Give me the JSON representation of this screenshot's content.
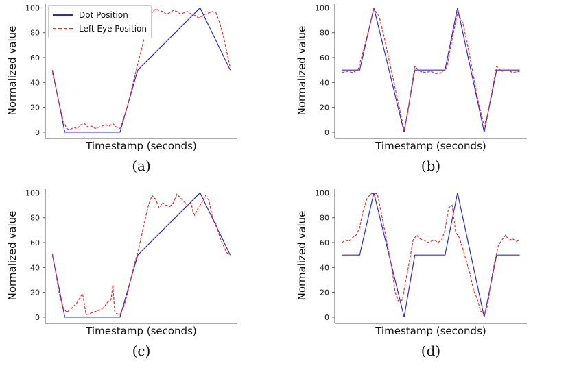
{
  "colors": {
    "dot": "#2b2bd6",
    "eye": "#e8312c",
    "axis": "#555555"
  },
  "legend": {
    "dot_label": "Dot Position",
    "eye_label": "Left Eye Position"
  },
  "chart_data": [
    {
      "type": "line",
      "caption": "(a)",
      "xlabel": "Timestamp (seconds)",
      "ylabel": "Normalized value",
      "ylim": [
        -5,
        103
      ],
      "yticks": [
        0,
        20,
        40,
        60,
        80,
        100
      ],
      "legend_placement": "top-left",
      "series": [
        {
          "name": "Dot Position",
          "style": "solid",
          "x": [
            0,
            7,
            38,
            48,
            83,
            100
          ],
          "values": [
            50,
            0,
            0,
            50,
            100,
            50
          ]
        },
        {
          "name": "Left Eye Position",
          "style": "dashed",
          "x": [
            0,
            2,
            4,
            6,
            8,
            10,
            12,
            14,
            16,
            18,
            20,
            22,
            24,
            26,
            28,
            30,
            32,
            34,
            36,
            38,
            40,
            42,
            44,
            46,
            48,
            50,
            52,
            54,
            56,
            58,
            60,
            62,
            64,
            66,
            68,
            70,
            72,
            74,
            76,
            78,
            80,
            82,
            84,
            86,
            88,
            90,
            92,
            94,
            96,
            98,
            100
          ],
          "values": [
            48,
            35,
            22,
            10,
            3,
            2,
            4,
            3,
            6,
            7,
            4,
            5,
            3,
            4,
            5,
            6,
            5,
            7,
            4,
            3,
            11,
            20,
            31,
            43,
            55,
            66,
            78,
            88,
            96,
            99,
            98,
            97,
            95,
            96,
            98,
            97,
            95,
            96,
            97,
            95,
            94,
            92,
            93,
            95,
            96,
            97,
            96,
            88,
            78,
            65,
            52
          ]
        }
      ]
    },
    {
      "type": "line",
      "caption": "(b)",
      "xlabel": "Timestamp (seconds)",
      "ylabel": "Normalized value",
      "ylim": [
        -5,
        103
      ],
      "yticks": [
        0,
        20,
        40,
        60,
        80,
        100
      ],
      "series": [
        {
          "name": "Dot Position",
          "style": "solid",
          "x": [
            0,
            10,
            18,
            35,
            41,
            58,
            65,
            80,
            87,
            100
          ],
          "values": [
            50,
            50,
            100,
            0,
            50,
            50,
            100,
            0,
            50,
            50
          ]
        },
        {
          "name": "Left Eye Position",
          "style": "dashed",
          "x": [
            0,
            3,
            6,
            9,
            12,
            15,
            18,
            21,
            24,
            27,
            30,
            33,
            35,
            37,
            39,
            41,
            44,
            47,
            50,
            53,
            56,
            59,
            62,
            65,
            68,
            71,
            74,
            77,
            80,
            82,
            84,
            87,
            90,
            93,
            96,
            100
          ],
          "values": [
            48,
            49,
            48,
            50,
            65,
            82,
            99,
            93,
            75,
            55,
            35,
            15,
            2,
            15,
            35,
            53,
            49,
            48,
            49,
            47,
            48,
            52,
            75,
            96,
            88,
            68,
            45,
            22,
            5,
            15,
            30,
            53,
            49,
            50,
            48,
            49
          ]
        }
      ]
    },
    {
      "type": "line",
      "caption": "(c)",
      "xlabel": "Timestamp (seconds)",
      "ylabel": "Normalized value",
      "ylim": [
        -5,
        103
      ],
      "yticks": [
        0,
        20,
        40,
        60,
        80,
        100
      ],
      "series": [
        {
          "name": "Dot Position",
          "style": "solid",
          "x": [
            0,
            7,
            38,
            48,
            83,
            100
          ],
          "values": [
            50,
            0,
            0,
            50,
            100,
            50
          ]
        },
        {
          "name": "Left Eye Position",
          "style": "dashed",
          "x": [
            0,
            2,
            4,
            6,
            8,
            10,
            12,
            14,
            16,
            17,
            19,
            21,
            23,
            25,
            27,
            29,
            31,
            33,
            34,
            35,
            36,
            38,
            40,
            42,
            44,
            46,
            48,
            50,
            52,
            54,
            56,
            58,
            60,
            62,
            64,
            66,
            68,
            70,
            72,
            74,
            76,
            78,
            79,
            80,
            82,
            84,
            86,
            88,
            90,
            92,
            94,
            96,
            98,
            100
          ],
          "values": [
            51,
            35,
            18,
            8,
            4,
            6,
            9,
            12,
            17,
            19,
            2,
            3,
            4,
            5,
            6,
            8,
            12,
            14,
            26,
            5,
            3,
            2,
            8,
            18,
            30,
            42,
            52,
            65,
            78,
            90,
            98,
            95,
            88,
            92,
            90,
            89,
            92,
            99,
            96,
            93,
            90,
            92,
            85,
            82,
            88,
            92,
            98,
            94,
            80,
            75,
            65,
            58,
            52,
            50
          ]
        }
      ]
    },
    {
      "type": "line",
      "caption": "(d)",
      "xlabel": "Timestamp (seconds)",
      "ylabel": "Normalized value",
      "ylim": [
        -5,
        103
      ],
      "yticks": [
        0,
        20,
        40,
        60,
        80,
        100
      ],
      "series": [
        {
          "name": "Dot Position",
          "style": "solid",
          "x": [
            0,
            10,
            18,
            35,
            41,
            58,
            65,
            80,
            87,
            100
          ],
          "values": [
            50,
            50,
            100,
            0,
            50,
            50,
            100,
            0,
            50,
            50
          ]
        },
        {
          "name": "Left Eye Position",
          "style": "dashed",
          "x": [
            0,
            2,
            4,
            6,
            8,
            10,
            12,
            14,
            16,
            18,
            20,
            22,
            24,
            26,
            28,
            30,
            32,
            34,
            36,
            38,
            40,
            42,
            44,
            46,
            48,
            50,
            52,
            54,
            56,
            58,
            60,
            62,
            64,
            66,
            68,
            70,
            72,
            74,
            76,
            78,
            80,
            82,
            84,
            86,
            88,
            90,
            92,
            94,
            96,
            98,
            100
          ],
          "values": [
            60,
            62,
            61,
            64,
            66,
            72,
            86,
            95,
            99,
            100,
            99,
            85,
            70,
            55,
            40,
            20,
            12,
            14,
            30,
            45,
            62,
            66,
            63,
            62,
            60,
            61,
            62,
            60,
            62,
            70,
            88,
            90,
            68,
            64,
            55,
            45,
            35,
            22,
            15,
            5,
            2,
            10,
            30,
            45,
            58,
            62,
            66,
            62,
            63,
            61,
            62
          ]
        }
      ]
    }
  ]
}
